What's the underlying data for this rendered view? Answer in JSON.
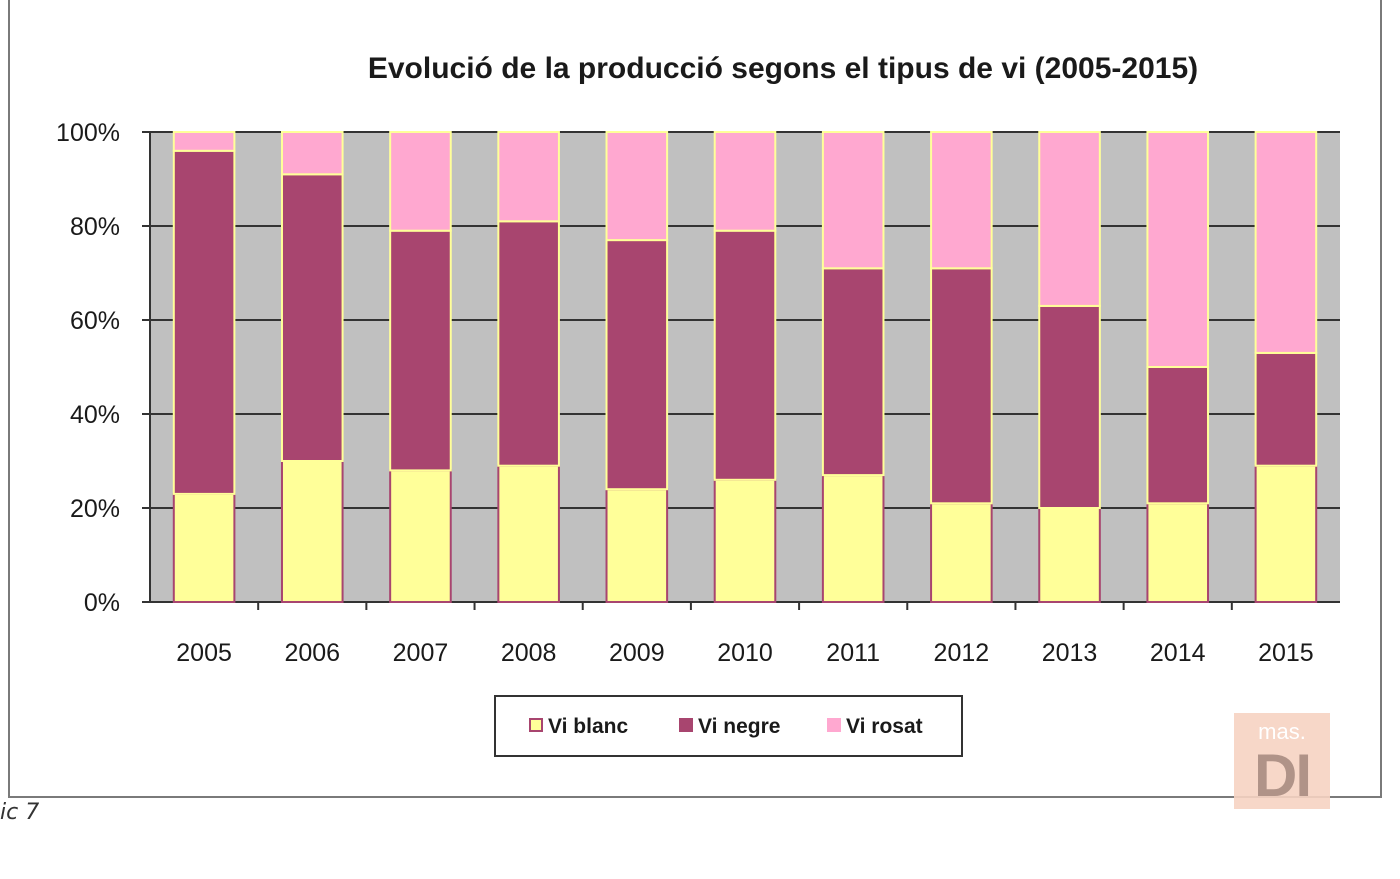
{
  "chart_data": {
    "type": "bar",
    "stacked": true,
    "percent": true,
    "title": "Evolució de la producció segons el tipus de vi (2005-2015)",
    "categories": [
      "2005",
      "2006",
      "2007",
      "2008",
      "2009",
      "2010",
      "2011",
      "2012",
      "2013",
      "2014",
      "2015"
    ],
    "series": [
      {
        "name": "Vi blanc",
        "color": "#ffff99",
        "values": [
          23,
          30,
          28,
          29,
          24,
          26,
          27,
          21,
          20,
          21,
          29
        ]
      },
      {
        "name": "Vi negre",
        "color": "#a8456f",
        "values": [
          73,
          61,
          51,
          52,
          53,
          53,
          44,
          50,
          43,
          29,
          24
        ]
      },
      {
        "name": "Vi rosat",
        "color": "#ffa8d0",
        "values": [
          4,
          9,
          21,
          19,
          23,
          21,
          29,
          29,
          37,
          50,
          47
        ]
      }
    ],
    "yticks": [
      "0%",
      "20%",
      "40%",
      "60%",
      "80%",
      "100%"
    ],
    "ylim": [
      0,
      100
    ],
    "plot_background": "#c0c0c0",
    "gridlines": true,
    "legend": {
      "position": "bottom",
      "entries": [
        "Vi blanc",
        "Vi negre",
        "Vi rosat"
      ]
    }
  },
  "caption": "ic 7",
  "watermark": {
    "top": "mas.",
    "main": "DI"
  }
}
